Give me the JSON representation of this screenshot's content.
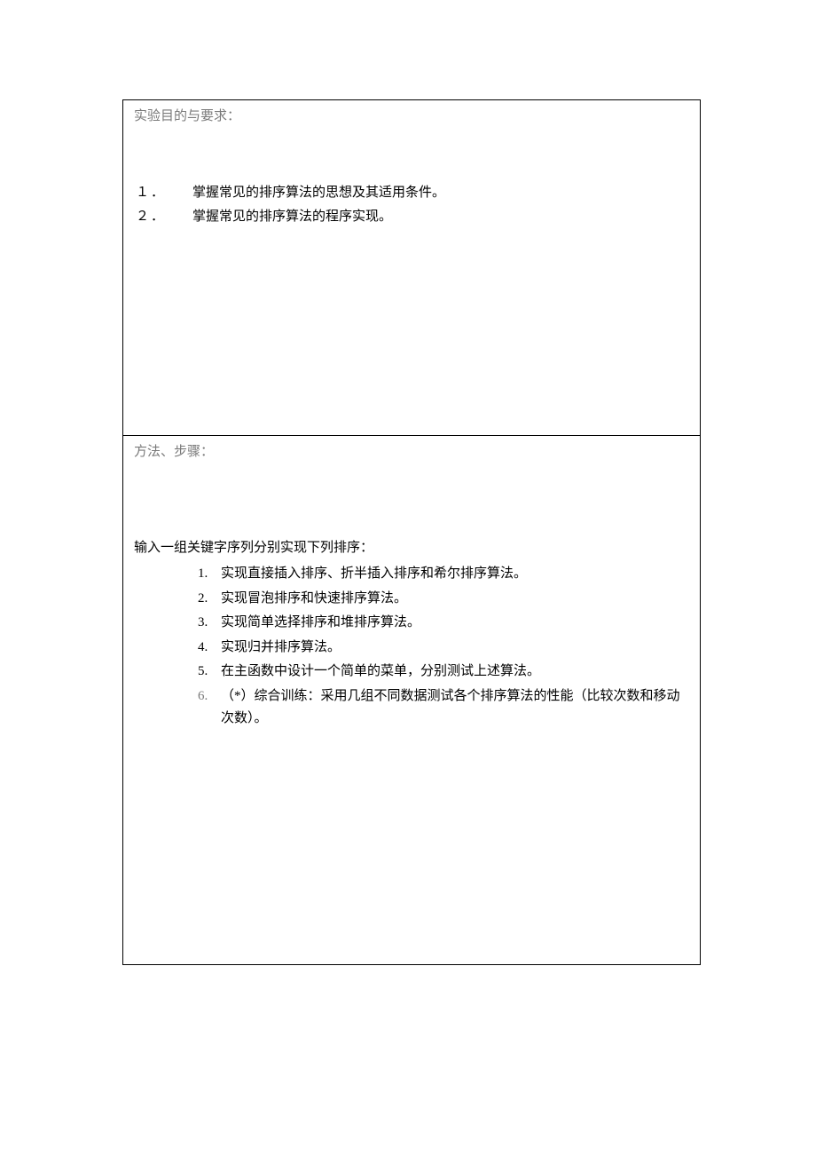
{
  "colors": {
    "text": "#000000",
    "muted": "#7a7a7a",
    "border": "#000000",
    "background": "#ffffff"
  },
  "typography": {
    "font_family": "SimSun",
    "base_size_pt": 11,
    "line_height": 1.7
  },
  "section1": {
    "title": "实验目的与要求：",
    "items": [
      {
        "no": "１．",
        "text": "掌握常见的排序算法的思想及其适用条件。"
      },
      {
        "no": "２．",
        "text": "掌握常见的排序算法的程序实现。"
      }
    ]
  },
  "section2": {
    "title": "方法、步骤：",
    "intro": "输入一组关键字序列分别实现下列排序：",
    "items": [
      {
        "no": "1.",
        "text": "实现直接插入排序、折半插入排序和希尔排序算法。"
      },
      {
        "no": "2.",
        "text": "实现冒泡排序和快速排序算法。"
      },
      {
        "no": "3.",
        "text": "实现简单选择排序和堆排序算法。"
      },
      {
        "no": "4.",
        "text": "实现归并排序算法。"
      },
      {
        "no": "5.",
        "text": "在主函数中设计一个简单的菜单，分别测试上述算法。"
      },
      {
        "no": "6.",
        "text": "（*）综合训练：采用几组不同数据测试各个排序算法的性能（比较次数和移动次数）。",
        "gray_no": true
      }
    ]
  }
}
